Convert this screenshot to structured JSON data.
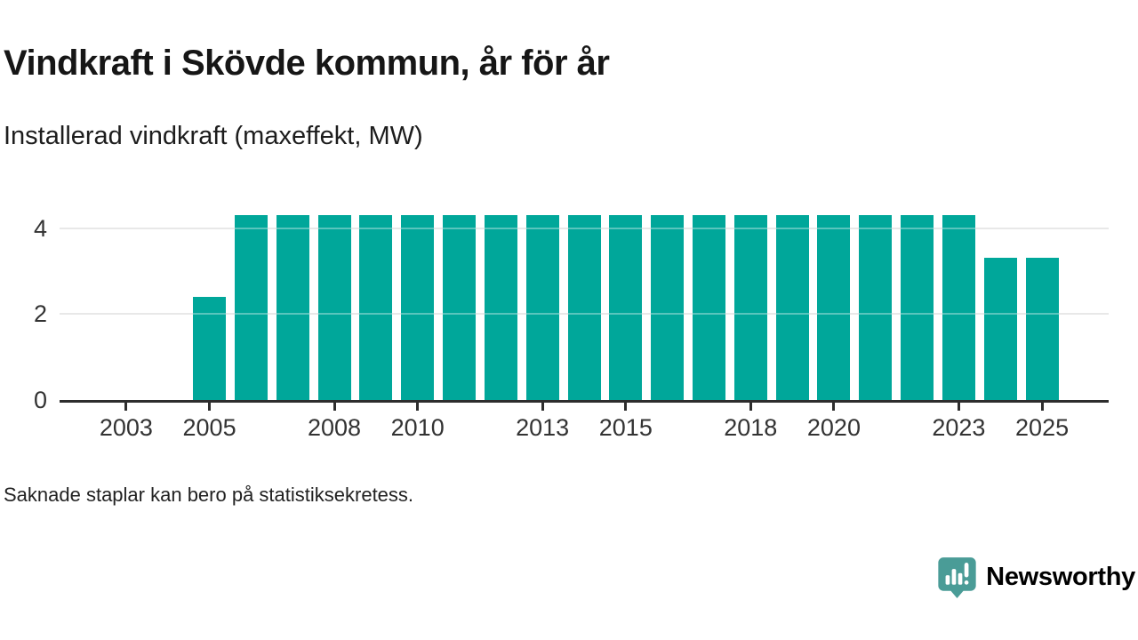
{
  "header": {
    "title": "Vindkraft i Skövde kommun, år för år",
    "subtitle": "Installerad vindkraft (maxeffekt, MW)"
  },
  "chart_data": {
    "type": "bar",
    "title": "Vindkraft i Skövde kommun, år för år",
    "subtitle": "Installerad vindkraft (maxeffekt, MW)",
    "ylabel": "Installerad vindkraft (maxeffekt, MW)",
    "xlabel": "",
    "unit": "MW",
    "categories": [
      2002,
      2003,
      2004,
      2005,
      2006,
      2007,
      2008,
      2009,
      2010,
      2011,
      2012,
      2013,
      2014,
      2015,
      2016,
      2017,
      2018,
      2019,
      2020,
      2021,
      2022,
      2023,
      2024,
      2025
    ],
    "values": [
      null,
      null,
      null,
      2.4,
      4.3,
      4.3,
      4.3,
      4.3,
      4.3,
      4.3,
      4.3,
      4.3,
      4.3,
      4.3,
      4.3,
      4.3,
      4.3,
      4.3,
      4.3,
      4.3,
      4.3,
      4.3,
      3.3,
      3.3
    ],
    "x_tick_years": [
      2003,
      2005,
      2008,
      2010,
      2013,
      2015,
      2018,
      2020,
      2023,
      2025
    ],
    "y_ticks": [
      0,
      2,
      4
    ],
    "ylim": [
      0,
      4.55
    ],
    "xlim": [
      2001.4,
      2026.6
    ],
    "grid": "horizontal-light",
    "legend": "none",
    "bar_color": "#00a79a"
  },
  "footnote": {
    "text": "Saknade staplar kan bero på statistiksekretess."
  },
  "branding": {
    "logo_text": "Newsworthy",
    "logo_color": "#4a9c97",
    "logo_mark": "speech-bubble-bar-chart-icon"
  },
  "colors": {
    "bar": "#00a79a",
    "axis": "#2d2d2d",
    "grid": "#dcdcdc",
    "title_text": "#161616",
    "body_text": "#222222",
    "brand_teal": "#4a9c97"
  }
}
